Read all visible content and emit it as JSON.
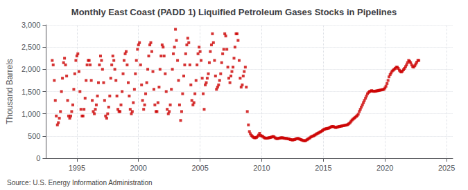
{
  "chart_data": {
    "type": "scatter",
    "title": "Monthly East Coast (PADD 1) Liquified Petroleum Gases Stocks in Pipelines",
    "ylabel": "Thousand Barrels",
    "source": "Source: U.S. Energy Information Administration",
    "color": "#CC0000",
    "marker": "square",
    "grid": true,
    "xlim": [
      1992.5,
      2025.5
    ],
    "xticks": [
      1995,
      2000,
      2005,
      2010,
      2015,
      2020,
      2025
    ],
    "ylim": [
      0,
      3000
    ],
    "yticks": [
      0,
      500,
      {
        "value": 1000,
        "label": "1,000"
      },
      {
        "value": 1500,
        "label": "1,500"
      },
      {
        "value": 2000,
        "label": "2,000"
      },
      {
        "value": 2500,
        "label": "2,500"
      },
      {
        "value": 3000,
        "label": "3,000"
      }
    ],
    "x": [
      1993.0,
      1993.08,
      1993.17,
      1993.25,
      1993.33,
      1993.42,
      1993.5,
      1993.58,
      1993.67,
      1993.75,
      1993.83,
      1993.92,
      1994.0,
      1994.08,
      1994.17,
      1994.25,
      1994.33,
      1994.42,
      1994.5,
      1994.58,
      1994.67,
      1994.75,
      1994.83,
      1994.92,
      1995.0,
      1995.08,
      1995.17,
      1995.25,
      1995.33,
      1995.42,
      1995.5,
      1995.58,
      1995.67,
      1995.75,
      1995.83,
      1995.92,
      1996.0,
      1996.08,
      1996.17,
      1996.25,
      1996.33,
      1996.42,
      1996.5,
      1996.58,
      1996.67,
      1996.75,
      1996.83,
      1996.92,
      1997.0,
      1997.08,
      1997.17,
      1997.25,
      1997.33,
      1997.42,
      1997.5,
      1997.58,
      1997.67,
      1997.75,
      1997.83,
      1997.92,
      1998.0,
      1998.08,
      1998.17,
      1998.25,
      1998.33,
      1998.42,
      1998.5,
      1998.58,
      1998.67,
      1998.75,
      1998.83,
      1998.92,
      1999.0,
      1999.08,
      1999.17,
      1999.25,
      1999.33,
      1999.42,
      1999.5,
      1999.58,
      1999.67,
      1999.75,
      1999.83,
      1999.92,
      2000.0,
      2000.08,
      2000.17,
      2000.25,
      2000.33,
      2000.42,
      2000.5,
      2000.58,
      2000.67,
      2000.75,
      2000.83,
      2000.92,
      2001.0,
      2001.08,
      2001.17,
      2001.25,
      2001.33,
      2001.42,
      2001.5,
      2001.58,
      2001.67,
      2001.75,
      2001.83,
      2001.92,
      2002.0,
      2002.08,
      2002.17,
      2002.25,
      2002.33,
      2002.42,
      2002.5,
      2002.58,
      2002.67,
      2002.75,
      2002.83,
      2002.92,
      2003.0,
      2003.08,
      2003.17,
      2003.25,
      2003.33,
      2003.42,
      2003.5,
      2003.58,
      2003.67,
      2003.75,
      2003.83,
      2003.92,
      2004.0,
      2004.08,
      2004.17,
      2004.25,
      2004.33,
      2004.42,
      2004.5,
      2004.58,
      2004.67,
      2004.75,
      2004.83,
      2004.92,
      2005.0,
      2005.08,
      2005.17,
      2005.25,
      2005.33,
      2005.42,
      2005.5,
      2005.58,
      2005.67,
      2005.75,
      2005.83,
      2005.92,
      2006.0,
      2006.08,
      2006.17,
      2006.25,
      2006.33,
      2006.42,
      2006.5,
      2006.58,
      2006.67,
      2006.75,
      2006.83,
      2006.92,
      2007.0,
      2007.08,
      2007.17,
      2007.25,
      2007.33,
      2007.42,
      2007.5,
      2007.58,
      2007.67,
      2007.75,
      2007.83,
      2007.92,
      2008.0,
      2008.08,
      2008.17,
      2008.25,
      2008.33,
      2008.42,
      2008.5,
      2008.58,
      2008.67,
      2008.75,
      2008.83,
      2008.92,
      2009.0,
      2009.08,
      2009.17,
      2009.25,
      2009.33,
      2009.42,
      2009.5,
      2009.58,
      2009.67,
      2009.75,
      2009.83,
      2009.92,
      2010.0,
      2010.08,
      2010.17,
      2010.25,
      2010.33,
      2010.42,
      2010.5,
      2010.58,
      2010.67,
      2010.75,
      2010.83,
      2010.92,
      2011.0,
      2011.08,
      2011.17,
      2011.25,
      2011.33,
      2011.42,
      2011.5,
      2011.58,
      2011.67,
      2011.75,
      2011.83,
      2011.92,
      2012.0,
      2012.08,
      2012.17,
      2012.25,
      2012.33,
      2012.42,
      2012.5,
      2012.58,
      2012.67,
      2012.75,
      2012.83,
      2012.92,
      2013.0,
      2013.08,
      2013.17,
      2013.25,
      2013.33,
      2013.42,
      2013.5,
      2013.58,
      2013.67,
      2013.75,
      2013.83,
      2013.92,
      2014.0,
      2014.08,
      2014.17,
      2014.25,
      2014.33,
      2014.42,
      2014.5,
      2014.58,
      2014.67,
      2014.75,
      2014.83,
      2014.92,
      2015.0,
      2015.08,
      2015.17,
      2015.25,
      2015.33,
      2015.42,
      2015.5,
      2015.58,
      2015.67,
      2015.75,
      2015.83,
      2015.92,
      2016.0,
      2016.08,
      2016.17,
      2016.25,
      2016.33,
      2016.42,
      2016.5,
      2016.58,
      2016.67,
      2016.75,
      2016.83,
      2016.92,
      2017.0,
      2017.08,
      2017.17,
      2017.25,
      2017.33,
      2017.42,
      2017.5,
      2017.58,
      2017.67,
      2017.75,
      2017.83,
      2017.92,
      2018.0,
      2018.08,
      2018.17,
      2018.25,
      2018.33,
      2018.42,
      2018.5,
      2018.58,
      2018.67,
      2018.75,
      2018.83,
      2018.92,
      2019.0,
      2019.08,
      2019.17,
      2019.25,
      2019.33,
      2019.42,
      2019.5,
      2019.58,
      2019.67,
      2019.75,
      2019.83,
      2019.92,
      2020.0,
      2020.08,
      2020.17,
      2020.25,
      2020.33,
      2020.42,
      2020.5,
      2020.58,
      2020.67,
      2020.75,
      2020.83,
      2020.92,
      2021.0,
      2021.08,
      2021.17,
      2021.25,
      2021.33,
      2021.42,
      2021.5,
      2021.58,
      2021.67,
      2021.75,
      2021.83,
      2021.92,
      2022.0,
      2022.08,
      2022.17,
      2022.25,
      2022.33,
      2022.42,
      2022.5,
      2022.58,
      2022.67,
      2022.75
    ],
    "values": [
      2200,
      2100,
      1750,
      1300,
      950,
      750,
      800,
      900,
      1050,
      1500,
      1800,
      2150,
      2250,
      2100,
      1850,
      1300,
      950,
      900,
      950,
      1050,
      1200,
      1550,
      1900,
      2200,
      2300,
      2350,
      1950,
      1500,
      1100,
      950,
      950,
      1100,
      1350,
      1750,
      2100,
      2200,
      2200,
      2100,
      1750,
      1300,
      1050,
      1000,
      1100,
      1200,
      1400,
      1700,
      2100,
      2300,
      2200,
      2000,
      1700,
      1300,
      950,
      900,
      1000,
      1150,
      1400,
      1800,
      2100,
      2300,
      2200,
      2000,
      1750,
      1400,
      1100,
      1050,
      1050,
      1200,
      1500,
      1900,
      2200,
      2350,
      2400,
      2100,
      1700,
      1400,
      1100,
      1000,
      1050,
      1250,
      1550,
      1900,
      2200,
      2450,
      2550,
      2600,
      2100,
      1650,
      1300,
      1100,
      1200,
      1450,
      1700,
      2000,
      2300,
      2550,
      2600,
      2400,
      1950,
      1550,
      1200,
      1050,
      1050,
      1250,
      1600,
      2000,
      2300,
      2550,
      2500,
      2300,
      1900,
      1500,
      1100,
      1000,
      1050,
      1200,
      1550,
      2000,
      2350,
      2500,
      2900,
      2650,
      2200,
      1750,
      1200,
      850,
      1050,
      1450,
      1850,
      2100,
      2350,
      2550,
      2700,
      2600,
      2100,
      1650,
      1300,
      1200,
      1250,
      1450,
      1750,
      2100,
      2350,
      2500,
      2400,
      2200,
      1800,
      1450,
      1100,
      1650,
      1700,
      1800,
      1900,
      2150,
      2400,
      2550,
      2800,
      2600,
      2200,
      1850,
      1550,
      1600,
      1650,
      1750,
      1900,
      2150,
      2350,
      2450,
      2800,
      2750,
      2450,
      2050,
      1800,
      1700,
      1850,
      1950,
      2050,
      2250,
      2500,
      2800,
      2800,
      2650,
      2200,
      1800,
      1600,
      1650,
      1850,
      1950,
      2050,
      1600,
      1050,
      750,
      600,
      550,
      510,
      490,
      470,
      460,
      460,
      470,
      490,
      520,
      560,
      510,
      500,
      490,
      470,
      455,
      450,
      450,
      455,
      460,
      465,
      470,
      480,
      490,
      480,
      460,
      445,
      440,
      445,
      450,
      455,
      460,
      460,
      455,
      450,
      445,
      445,
      440,
      435,
      430,
      420,
      415,
      410,
      415,
      420,
      430,
      440,
      445,
      440,
      430,
      420,
      410,
      400,
      395,
      390,
      400,
      415,
      430,
      445,
      460,
      480,
      490,
      500,
      510,
      525,
      540,
      555,
      565,
      580,
      590,
      605,
      620,
      640,
      650,
      660,
      665,
      670,
      675,
      685,
      700,
      710,
      715,
      710,
      700,
      690,
      695,
      705,
      710,
      715,
      720,
      725,
      730,
      735,
      740,
      745,
      750,
      760,
      780,
      800,
      830,
      860,
      880,
      900,
      920,
      940,
      960,
      990,
      1050,
      1100,
      1150,
      1200,
      1250,
      1300,
      1350,
      1400,
      1450,
      1480,
      1500,
      1510,
      1520,
      1510,
      1505,
      1505,
      1510,
      1515,
      1520,
      1525,
      1530,
      1535,
      1540,
      1545,
      1550,
      1580,
      1620,
      1680,
      1750,
      1830,
      1880,
      1920,
      1960,
      1980,
      2000,
      2020,
      2050,
      2050,
      2020,
      1980,
      1950,
      1940,
      1960,
      1990,
      2020,
      2060,
      2100,
      2150,
      2200,
      2180,
      2150,
      2100,
      2060,
      2050,
      2080,
      2120,
      2160,
      2200,
      2200
    ]
  }
}
